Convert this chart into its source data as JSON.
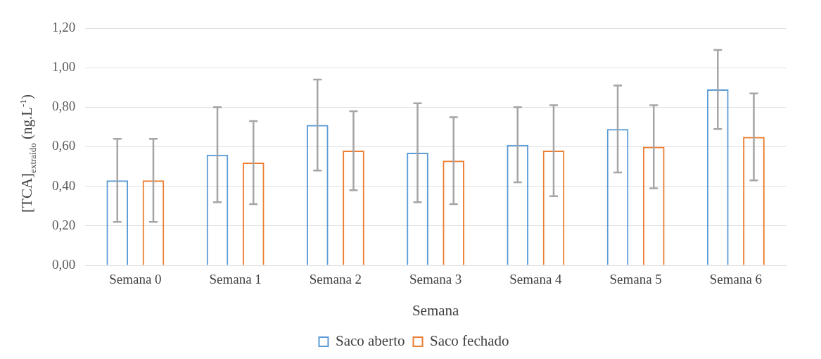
{
  "chart_data": {
    "type": "bar",
    "xlabel": "Semana",
    "ylabel": "[TCA]$_{extraído}$ (ng.L$^{-1}$)",
    "categories": [
      "Semana 0",
      "Semana 1",
      "Semana 2",
      "Semana 3",
      "Semana 4",
      "Semana 5",
      "Semana 6"
    ],
    "series": [
      {
        "name": "Saco aberto",
        "color": "#5b9bd5",
        "values": [
          0.43,
          0.56,
          0.71,
          0.57,
          0.61,
          0.69,
          0.89
        ],
        "errors": [
          0.21,
          0.24,
          0.23,
          0.25,
          0.19,
          0.22,
          0.2
        ]
      },
      {
        "name": "Saco fechado",
        "color": "#ed7d31",
        "values": [
          0.43,
          0.52,
          0.58,
          0.53,
          0.58,
          0.6,
          0.65
        ],
        "errors": [
          0.21,
          0.21,
          0.2,
          0.22,
          0.23,
          0.21,
          0.22
        ]
      }
    ],
    "ylim": [
      0,
      1.2
    ],
    "yticks": [
      {
        "value": 0,
        "label": "0,00"
      },
      {
        "value": 0.2,
        "label": "0,20"
      },
      {
        "value": 0.4,
        "label": "0,40"
      },
      {
        "value": 0.6,
        "label": "0,60"
      },
      {
        "value": 0.8,
        "label": "0,80"
      },
      {
        "value": 1,
        "label": "1,00"
      },
      {
        "value": 1.2,
        "label": "1,20"
      }
    ],
    "grid": "y",
    "legend": "bottom"
  }
}
